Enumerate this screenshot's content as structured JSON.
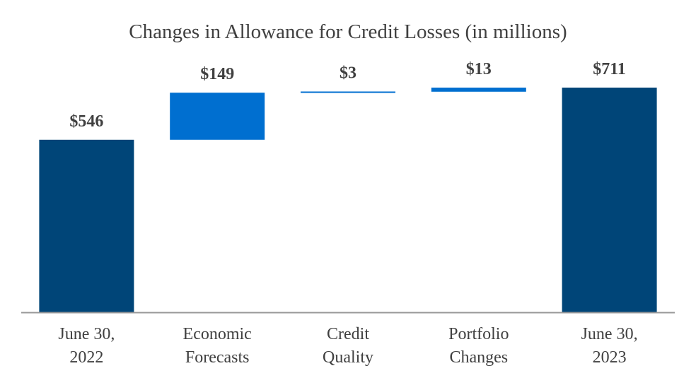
{
  "chart_data": {
    "type": "bar",
    "subtype": "waterfall",
    "title": "Changes in Allowance for Credit Losses (in millions)",
    "xlabel": "",
    "ylabel": "",
    "ylim": [
      0,
      711
    ],
    "grid": false,
    "legend": "none",
    "categories": [
      [
        "June 30,",
        "2022"
      ],
      [
        "Economic",
        "Forecasts"
      ],
      [
        "Credit",
        "Quality"
      ],
      [
        "Portfolio",
        "Changes"
      ],
      [
        "June 30,",
        "2023"
      ]
    ],
    "bars": [
      {
        "kind": "total",
        "start": 0,
        "end": 546,
        "label": "$546"
      },
      {
        "kind": "change",
        "start": 546,
        "end": 695,
        "label": "$149"
      },
      {
        "kind": "change",
        "start": 695,
        "end": 698,
        "label": "$3"
      },
      {
        "kind": "change",
        "start": 698,
        "end": 711,
        "label": "$13"
      },
      {
        "kind": "total",
        "start": 0,
        "end": 711,
        "label": "$711"
      }
    ],
    "colors": {
      "total": "#004578",
      "change": "#006FD0",
      "axis": "#999999",
      "text": "#404040"
    }
  }
}
